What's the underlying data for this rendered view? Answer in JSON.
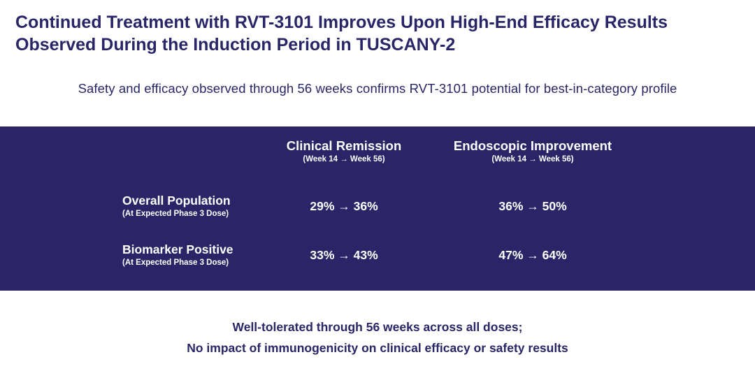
{
  "title": {
    "line1": "Continued Treatment with RVT-3101 Improves Upon High-End Efficacy Results",
    "line2": "Observed During the Induction Period in TUSCANY-2"
  },
  "subtitle": "Safety and efficacy observed through 56 weeks confirms RVT-3101 potential for best-in-category profile",
  "table": {
    "columns": [
      {
        "label": "Clinical Remission",
        "sublabel": "(Week 14 → Week 56)"
      },
      {
        "label": "Endoscopic Improvement",
        "sublabel": "(Week 14 → Week 56)"
      }
    ],
    "rows": [
      {
        "label": "Overall Population",
        "sublabel": "(At Expected Phase 3 Dose)",
        "values": [
          "29% → 36%",
          "36% → 50%"
        ]
      },
      {
        "label": "Biomarker Positive",
        "sublabel": "(At Expected Phase 3 Dose)",
        "values": [
          "33% → 43%",
          "47% → 64%"
        ]
      }
    ]
  },
  "footer": {
    "line1": "Well-tolerated through 56 weeks across all doses;",
    "line2": "No impact of immunogenicity on clinical efficacy or safety results"
  },
  "colors": {
    "primary": "#2a2566",
    "panel": "#2b2467",
    "panel_text": "#ffffff"
  }
}
